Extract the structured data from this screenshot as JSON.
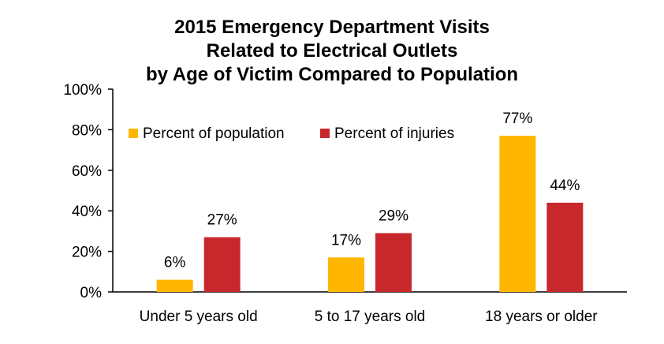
{
  "chart_data": {
    "type": "bar",
    "title": [
      "2015 Emergency Department Visits",
      "Related to Electrical Outlets",
      "by Age of Victim Compared to Population"
    ],
    "categories": [
      "Under 5 years old",
      "5 to 17 years old",
      "18 years or older"
    ],
    "series": [
      {
        "name": "Percent of population",
        "values": [
          6,
          17,
          77
        ],
        "labels": [
          "6%",
          "17%",
          "77%"
        ],
        "color": "#FFB600"
      },
      {
        "name": "Percent of injuries",
        "values": [
          27,
          29,
          44
        ],
        "labels": [
          "27%",
          "29%",
          "44%"
        ],
        "color": "#C8282C"
      }
    ],
    "yticks": [
      "0%",
      "20%",
      "40%",
      "60%",
      "80%",
      "100%"
    ],
    "ylim": [
      0,
      100
    ],
    "xlabel": "",
    "ylabel": "",
    "grid": false,
    "legend": "top-left"
  }
}
